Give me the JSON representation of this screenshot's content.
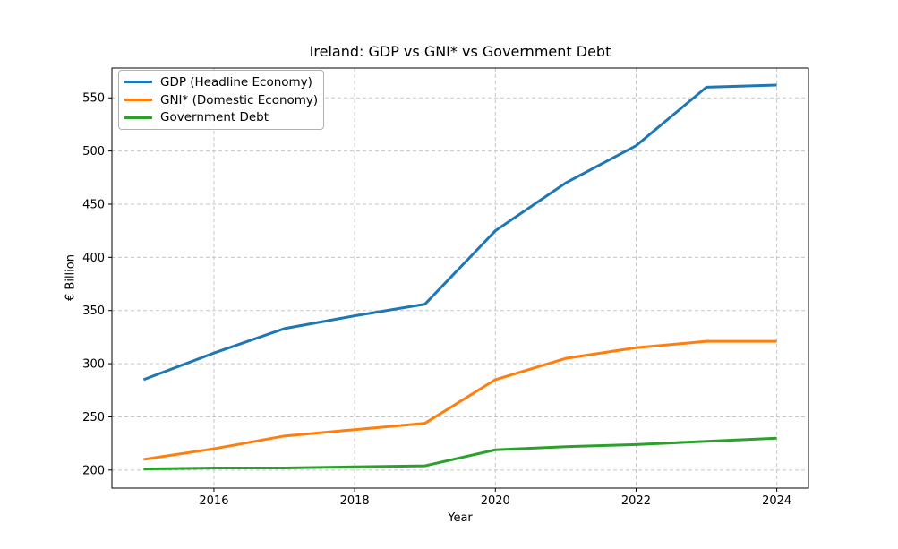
{
  "chart_data": {
    "type": "line",
    "title": "Ireland: GDP vs GNI* vs Government Debt",
    "xlabel": "Year",
    "ylabel": "€ Billion",
    "x": [
      2015,
      2016,
      2017,
      2018,
      2019,
      2020,
      2021,
      2022,
      2023,
      2024
    ],
    "series": [
      {
        "name": "GDP (Headline Economy)",
        "color": "#1f77b4",
        "values": [
          285,
          310,
          333,
          345,
          356,
          425,
          470,
          505,
          560,
          562
        ]
      },
      {
        "name": "GNI* (Domestic Economy)",
        "color": "#ff7f0e",
        "values": [
          210,
          220,
          232,
          238,
          244,
          285,
          305,
          315,
          321,
          321
        ]
      },
      {
        "name": "Government Debt",
        "color": "#2ca02c",
        "values": [
          201,
          202,
          202,
          203,
          204,
          219,
          222,
          224,
          227,
          230
        ]
      }
    ],
    "xticks": [
      2016,
      2018,
      2020,
      2022,
      2024
    ],
    "yticks": [
      200,
      250,
      300,
      350,
      400,
      450,
      500,
      550
    ],
    "xlim": [
      2014.55,
      2024.45
    ],
    "ylim": [
      183,
      578
    ],
    "grid": true,
    "legend_position": "upper-left",
    "line_width": 3,
    "grid_color": "#c6c6c6",
    "axis_color": "#000000",
    "background": "#ffffff"
  }
}
